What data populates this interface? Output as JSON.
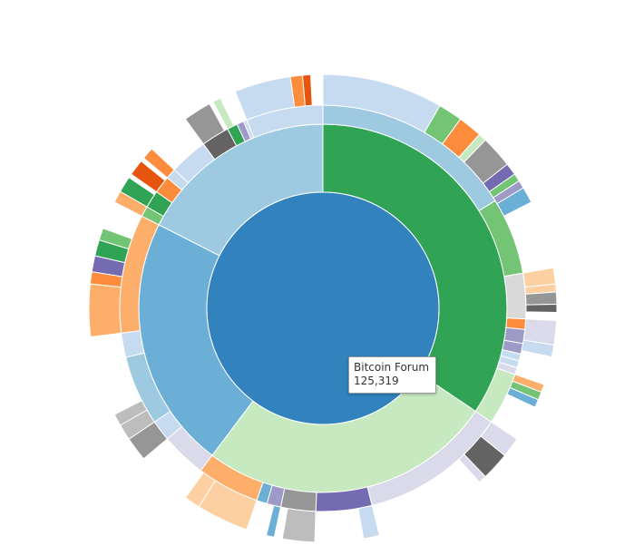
{
  "chart_data": {
    "type": "sunburst",
    "root": {
      "name": "Bitcoin Forum",
      "value": 125319,
      "color": "#3182bd"
    },
    "rings": [
      [
        {
          "start": 0,
          "end": 124,
          "color": "#31a354"
        },
        {
          "start": 124,
          "end": 217,
          "color": "#c7e9c0"
        },
        {
          "start": 217,
          "end": 297,
          "color": "#6baed6"
        },
        {
          "start": 297,
          "end": 360,
          "color": "#9ecae1"
        }
      ],
      [
        {
          "start": 0,
          "end": 58,
          "color": "#9ecae1"
        },
        {
          "start": 58,
          "end": 80,
          "color": "#74c476"
        },
        {
          "start": 80,
          "end": 93,
          "color": "#d9d9d9"
        },
        {
          "start": 93,
          "end": 96,
          "color": "#fd8d3c"
        },
        {
          "start": 96,
          "end": 100,
          "color": "#9e9ac8"
        },
        {
          "start": 100,
          "end": 103,
          "color": "#9e9ac8"
        },
        {
          "start": 103,
          "end": 105,
          "color": "#c6dbef"
        },
        {
          "start": 105,
          "end": 107,
          "color": "#c6dbef"
        },
        {
          "start": 107,
          "end": 109,
          "color": "#dadaeb"
        },
        {
          "start": 109,
          "end": 124,
          "color": "#c7e9c0"
        },
        {
          "start": 124,
          "end": 166,
          "color": "#dadaeb"
        },
        {
          "start": 166,
          "end": 182,
          "color": "#756bb1"
        },
        {
          "start": 182,
          "end": 192,
          "color": "#969696"
        },
        {
          "start": 192,
          "end": 196,
          "color": "#9e9ac8"
        },
        {
          "start": 196,
          "end": 199,
          "color": "#6baed6"
        },
        {
          "start": 199,
          "end": 217,
          "color": "#fdae6b"
        },
        {
          "start": 217,
          "end": 230,
          "color": "#dadaeb"
        },
        {
          "start": 230,
          "end": 236,
          "color": "#c6dbef"
        },
        {
          "start": 236,
          "end": 256,
          "color": "#9ecae1"
        },
        {
          "start": 256,
          "end": 263,
          "color": "#c6dbef"
        },
        {
          "start": 263,
          "end": 297,
          "color": "#fdae6b"
        },
        {
          "start": 297,
          "end": 300,
          "color": "#74c476"
        },
        {
          "start": 300,
          "end": 305,
          "color": "#31a354"
        },
        {
          "start": 305,
          "end": 310,
          "color": "#fd8d3c"
        },
        {
          "start": 310,
          "end": 313,
          "color": "#c6dbef"
        },
        {
          "start": 313,
          "end": 324,
          "color": "#c6dbef"
        },
        {
          "start": 324,
          "end": 332,
          "color": "#636363"
        },
        {
          "start": 332,
          "end": 335,
          "color": "#31a354"
        },
        {
          "start": 335,
          "end": 337,
          "color": "#9e9ac8"
        },
        {
          "start": 337,
          "end": 338,
          "color": "#c6dbef"
        },
        {
          "start": 338,
          "end": 360,
          "color": "#c6dbef"
        }
      ],
      [
        {
          "start": 0,
          "end": 30,
          "color": "#c6dbef"
        },
        {
          "start": 30,
          "end": 36,
          "color": "#74c476"
        },
        {
          "start": 36,
          "end": 42,
          "color": "#fd8d3c"
        },
        {
          "start": 42,
          "end": 44,
          "color": "#c7e9c0"
        },
        {
          "start": 44,
          "end": 52,
          "color": "#969696"
        },
        {
          "start": 52,
          "end": 55,
          "color": "#756bb1"
        },
        {
          "start": 55,
          "end": 57,
          "color": "#74c476"
        },
        {
          "start": 57,
          "end": 59,
          "color": "#9e9ac8"
        },
        {
          "start": 59,
          "end": 63,
          "color": "#6baed6"
        },
        {
          "start": 80,
          "end": 84,
          "color": "#fdd0a2"
        },
        {
          "start": 84,
          "end": 86,
          "color": "#fdd0a2"
        },
        {
          "start": 86,
          "end": 89,
          "color": "#969696"
        },
        {
          "start": 89,
          "end": 91,
          "color": "#636363"
        },
        {
          "start": 93,
          "end": 99,
          "color": "#dadaeb"
        },
        {
          "start": 99,
          "end": 102,
          "color": "#c6dbef"
        },
        {
          "start": 109,
          "end": 111,
          "color": "#fdae6b"
        },
        {
          "start": 111,
          "end": 113,
          "color": "#74c476"
        },
        {
          "start": 113,
          "end": 115,
          "color": "#6baed6"
        },
        {
          "start": 124,
          "end": 129,
          "color": "#dadaeb"
        },
        {
          "start": 129,
          "end": 136,
          "color": "#636363"
        },
        {
          "start": 136,
          "end": 138,
          "color": "#dadaeb"
        },
        {
          "start": 166,
          "end": 170,
          "color": "#c6dbef"
        },
        {
          "start": 182,
          "end": 190,
          "color": "#bdbdbd"
        },
        {
          "start": 192,
          "end": 194,
          "color": "#6baed6"
        },
        {
          "start": 199,
          "end": 212,
          "color": "#fdd0a2"
        },
        {
          "start": 212,
          "end": 216,
          "color": "#fdd0a2"
        },
        {
          "start": 230,
          "end": 236,
          "color": "#969696"
        },
        {
          "start": 236,
          "end": 240,
          "color": "#bdbdbd"
        },
        {
          "start": 240,
          "end": 243,
          "color": "#bdbdbd"
        },
        {
          "start": 263,
          "end": 276,
          "color": "#fdae6b"
        },
        {
          "start": 276,
          "end": 279,
          "color": "#fd8d3c"
        },
        {
          "start": 279,
          "end": 283,
          "color": "#756bb1"
        },
        {
          "start": 283,
          "end": 287,
          "color": "#31a354"
        },
        {
          "start": 287,
          "end": 290,
          "color": "#74c476"
        },
        {
          "start": 297,
          "end": 300,
          "color": "#fdae6b"
        },
        {
          "start": 300,
          "end": 304,
          "color": "#31a354"
        },
        {
          "start": 305,
          "end": 309,
          "color": "#e6550d"
        },
        {
          "start": 310,
          "end": 313,
          "color": "#fd8d3c"
        },
        {
          "start": 324,
          "end": 331,
          "color": "#969696"
        },
        {
          "start": 332,
          "end": 334,
          "color": "#c7e9c0"
        },
        {
          "start": 338,
          "end": 352,
          "color": "#c6dbef"
        },
        {
          "start": 352,
          "end": 355,
          "color": "#fd8d3c"
        },
        {
          "start": 355,
          "end": 357,
          "color": "#e6550d"
        }
      ]
    ]
  },
  "tooltip": {
    "name": "Bitcoin Forum",
    "value": "125,319"
  }
}
